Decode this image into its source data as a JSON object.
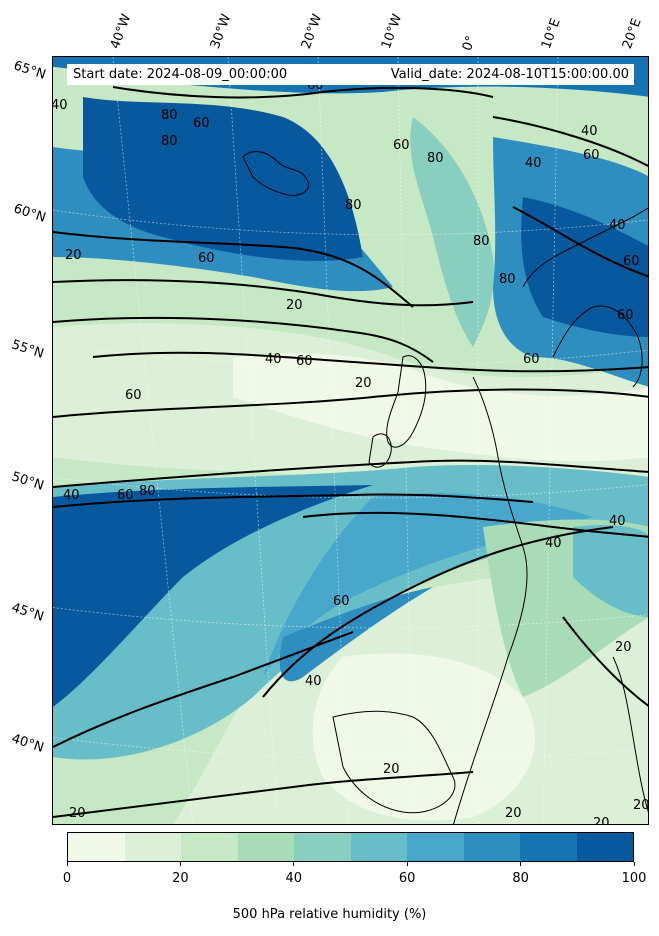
{
  "map": {
    "latitude_labels": [
      "65°N",
      "60°N",
      "55°N",
      "50°N",
      "45°N",
      "40°N"
    ],
    "longitude_labels": [
      "40°W",
      "30°W",
      "20°W",
      "10°W",
      "0°",
      "10°E",
      "20°E"
    ],
    "start_date": "Start date: 2024-08-09_00:00:00",
    "valid_date": "Valid_date: 2024-08-10T15:00:00.00",
    "contour_labels": [
      "80",
      "60",
      "80",
      "60",
      "40",
      "20",
      "60",
      "20",
      "40",
      "60",
      "20",
      "60",
      "40",
      "60",
      "80",
      "40",
      "60",
      "40",
      "20",
      "40",
      "20",
      "20",
      "20",
      "20",
      "20",
      "60",
      "80",
      "80",
      "80",
      "60",
      "40",
      "60",
      "60",
      "40",
      "80",
      "60",
      "40"
    ],
    "colors": {
      "land_border": "#000000",
      "contour_line": "#000000"
    }
  },
  "colorbar": {
    "label": "500 hPa relative humidity (%)",
    "tick_labels": [
      "0",
      "20",
      "40",
      "60",
      "80",
      "100"
    ],
    "levels": [
      0,
      10,
      20,
      30,
      40,
      50,
      60,
      70,
      80,
      90,
      100
    ],
    "colors": [
      "#f0f9e8",
      "#dbf0d6",
      "#c6e8c4",
      "#a8dcb6",
      "#89cfbf",
      "#68bec8",
      "#49a7cc",
      "#2f8ec0",
      "#1674b3",
      "#08589e"
    ]
  }
}
